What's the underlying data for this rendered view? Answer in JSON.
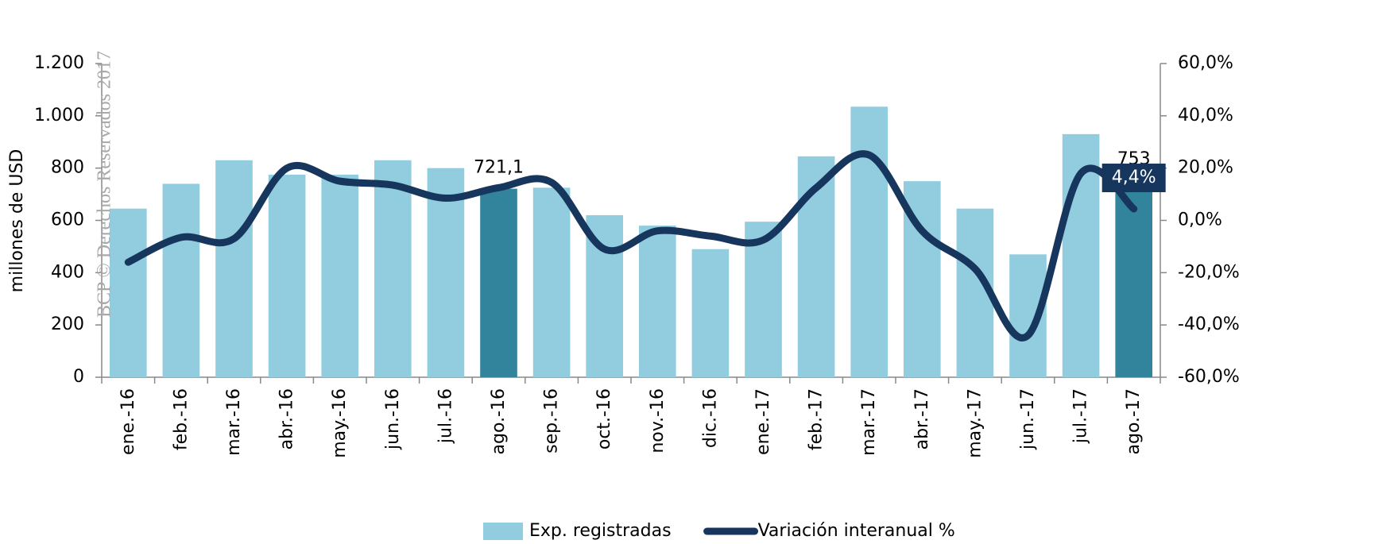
{
  "chart_data": {
    "type": "bar_line",
    "watermark": "BCP © Derechos Reservados 2017",
    "ylabel": "millones de USD",
    "categories": [
      "ene.-16",
      "feb.-16",
      "mar.-16",
      "abr.-16",
      "may.-16",
      "jun.-16",
      "jul.-16",
      "ago.-16",
      "sep.-16",
      "oct.-16",
      "nov.-16",
      "dic.-16",
      "ene.-17",
      "feb.-17",
      "mar.-17",
      "abr.-17",
      "may.-17",
      "jun.-17",
      "jul.-17",
      "ago.-17"
    ],
    "series": [
      {
        "name": "Exp. registradas",
        "type": "bar",
        "color": "#92cddf",
        "colors": [
          "#92cddf",
          "#92cddf",
          "#92cddf",
          "#92cddf",
          "#92cddf",
          "#92cddf",
          "#92cddf",
          "#31849b",
          "#92cddf",
          "#92cddf",
          "#92cddf",
          "#92cddf",
          "#92cddf",
          "#92cddf",
          "#92cddf",
          "#92cddf",
          "#92cddf",
          "#92cddf",
          "#92cddf",
          "#31849b"
        ],
        "values": [
          645,
          740,
          830,
          775,
          775,
          830,
          800,
          721.1,
          725,
          620,
          580,
          490,
          595,
          845,
          1035,
          750,
          645,
          470,
          930,
          753
        ],
        "value_labels": [
          null,
          null,
          null,
          null,
          null,
          null,
          null,
          "721,1",
          null,
          null,
          null,
          null,
          null,
          null,
          null,
          null,
          null,
          null,
          null,
          "753"
        ]
      },
      {
        "name": "Variación interanual %",
        "type": "line",
        "axis": "y2",
        "color": "#17365d",
        "values": [
          -16,
          -6.5,
          -7,
          20,
          15,
          13.5,
          8.5,
          12.5,
          14.5,
          -11,
          -4,
          -6,
          -7.5,
          12.5,
          25,
          -4,
          -18.5,
          -44,
          18,
          4.4
        ],
        "value_labels": [
          null,
          null,
          null,
          null,
          null,
          null,
          null,
          null,
          null,
          null,
          null,
          null,
          null,
          null,
          null,
          null,
          null,
          null,
          null,
          "4,4%"
        ]
      }
    ],
    "ylim": [
      0,
      1200
    ],
    "yticks": [
      0,
      200,
      400,
      600,
      800,
      {
        "value": 1000,
        "label": "1.000"
      },
      {
        "value": 1200,
        "label": "1.200"
      }
    ],
    "y2lim": [
      -60,
      60
    ],
    "y2ticks": [
      {
        "value": -60,
        "label": "-60,0%"
      },
      {
        "value": -40,
        "label": "-40,0%"
      },
      {
        "value": -20,
        "label": "-20,0%"
      },
      {
        "value": 0,
        "label": "0,0%"
      },
      {
        "value": 20,
        "label": "20,0%"
      },
      {
        "value": 40,
        "label": "40,0%"
      },
      {
        "value": 60,
        "label": "60,0%"
      }
    ],
    "legend": "bottom"
  }
}
